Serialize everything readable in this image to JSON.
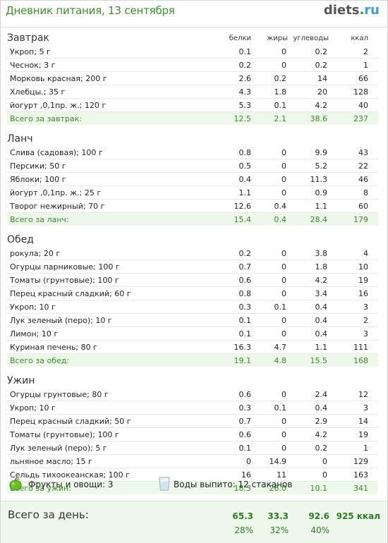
{
  "header": {
    "title": "Дневник питания, 13 сентября",
    "brand_main": "diets",
    "brand_dot": ".",
    "brand_tld": "ru"
  },
  "columns": {
    "protein": "белки",
    "fat": "жиры",
    "carbs": "углеводы",
    "kcal": "ккал"
  },
  "sections": [
    {
      "title": "Завтрак",
      "rows": [
        {
          "name": "Укроп; 5 г",
          "p": "0.1",
          "f": "0",
          "c": "0.2",
          "k": "2"
        },
        {
          "name": "Чеснок; 3 г",
          "p": "0.2",
          "f": "0",
          "c": "0.2",
          "k": "1"
        },
        {
          "name": "Морковь красная; 200 г",
          "p": "2.6",
          "f": "0.2",
          "c": "14",
          "k": "66"
        },
        {
          "name": "Хлебцы.; 35 г",
          "p": "4.3",
          "f": "1.8",
          "c": "20",
          "k": "128"
        },
        {
          "name": "йогурт ,0,1пр. ж.; 120 г",
          "p": "5.3",
          "f": "0.1",
          "c": "4.2",
          "k": "40"
        }
      ],
      "total": {
        "label": "Всего за завтрак:",
        "p": "12.5",
        "f": "2.1",
        "c": "38.6",
        "k": "237"
      }
    },
    {
      "title": "Ланч",
      "rows": [
        {
          "name": "Слива (садовая); 100 г",
          "p": "0.8",
          "f": "0",
          "c": "9.9",
          "k": "43"
        },
        {
          "name": "Персики; 50 г",
          "p": "0.5",
          "f": "0",
          "c": "5.2",
          "k": "22"
        },
        {
          "name": "Яблоки; 100 г",
          "p": "0.4",
          "f": "0",
          "c": "11.3",
          "k": "46"
        },
        {
          "name": "йогурт ,0,1пр. ж.; 25 г",
          "p": "1.1",
          "f": "0",
          "c": "0.9",
          "k": "8"
        },
        {
          "name": "Творог нежирный; 70 г",
          "p": "12.6",
          "f": "0.4",
          "c": "1.1",
          "k": "60"
        }
      ],
      "total": {
        "label": "Всего за ланч:",
        "p": "15.4",
        "f": "0.4",
        "c": "28.4",
        "k": "179"
      }
    },
    {
      "title": "Обед",
      "rows": [
        {
          "name": "рокула; 20 г",
          "p": "0.2",
          "f": "0",
          "c": "3.8",
          "k": "4"
        },
        {
          "name": "Огурцы парниковые; 100 г",
          "p": "0.7",
          "f": "0",
          "c": "1.8",
          "k": "10"
        },
        {
          "name": "Томаты (грунтовые); 100 г",
          "p": "0.6",
          "f": "0",
          "c": "4.2",
          "k": "19"
        },
        {
          "name": "Перец красный сладкий; 60 г",
          "p": "0.8",
          "f": "0",
          "c": "3.4",
          "k": "16"
        },
        {
          "name": "Укроп; 10 г",
          "p": "0.3",
          "f": "0.1",
          "c": "0.4",
          "k": "3"
        },
        {
          "name": "Лук зеленый (перо); 10 г",
          "p": "0.1",
          "f": "0",
          "c": "0.4",
          "k": "2"
        },
        {
          "name": "Лимон; 10 г",
          "p": "0.1",
          "f": "0",
          "c": "0.4",
          "k": "3"
        },
        {
          "name": "Куриная печень; 80 г",
          "p": "16.3",
          "f": "4.7",
          "c": "1.1",
          "k": "111"
        }
      ],
      "total": {
        "label": "Всего за обед:",
        "p": "19.1",
        "f": "4.8",
        "c": "15.5",
        "k": "168"
      }
    },
    {
      "title": "Ужин",
      "rows": [
        {
          "name": "Огурцы грунтовые; 80 г",
          "p": "0.6",
          "f": "0",
          "c": "2.4",
          "k": "12"
        },
        {
          "name": "Укроп; 10 г",
          "p": "0.3",
          "f": "0.1",
          "c": "0.4",
          "k": "3"
        },
        {
          "name": "Перец красный сладкий; 50 г",
          "p": "0.7",
          "f": "0",
          "c": "2.9",
          "k": "14"
        },
        {
          "name": "Томаты (грунтовые); 100 г",
          "p": "0.6",
          "f": "0",
          "c": "4.2",
          "k": "19"
        },
        {
          "name": "Лук зеленый (перо); 5 г",
          "p": "0.1",
          "f": "0",
          "c": "0.2",
          "k": "1"
        },
        {
          "name": "льняное масло; 15 г",
          "p": "0",
          "f": "14.9",
          "c": "0",
          "k": "129"
        },
        {
          "name": "Сельдь тихоокеанская; 100 г",
          "p": "16",
          "f": "11",
          "c": "0",
          "k": "163"
        }
      ],
      "total": {
        "label": "Всего за ужин:",
        "p": "18.3",
        "f": "26.0",
        "c": "10.1",
        "k": "341"
      }
    }
  ],
  "extras": {
    "fruits_label": "Фрукты и овощи: 3",
    "water_label": "Воды выпито: 12 стаканов",
    "apple_icon": "green-apple-icon",
    "glass_icon": "water-glass-icon"
  },
  "day_total": {
    "label": "Всего за день:",
    "p": "65.3",
    "f": "33.3",
    "c": "92.6",
    "k": "925 ккал",
    "p_pct": "28%",
    "f_pct": "32%",
    "c_pct": "40%"
  }
}
